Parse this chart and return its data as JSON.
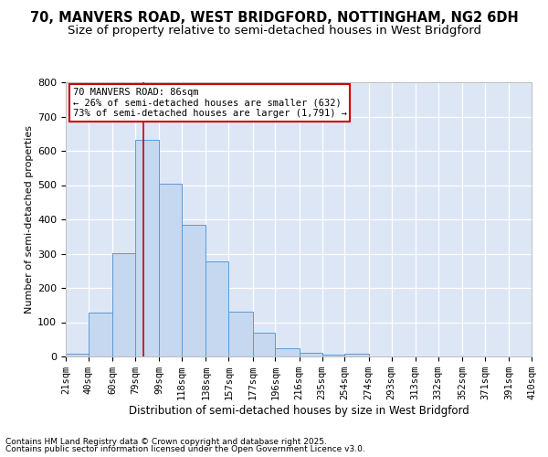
{
  "title1": "70, MANVERS ROAD, WEST BRIDGFORD, NOTTINGHAM, NG2 6DH",
  "title2": "Size of property relative to semi-detached houses in West Bridgford",
  "xlabel": "Distribution of semi-detached houses by size in West Bridgford",
  "ylabel": "Number of semi-detached properties",
  "footnote1": "Contains HM Land Registry data © Crown copyright and database right 2025.",
  "footnote2": "Contains public sector information licensed under the Open Government Licence v3.0.",
  "bar_edges": [
    21,
    40,
    60,
    79,
    99,
    118,
    138,
    157,
    177,
    196,
    216,
    235,
    254,
    274,
    293,
    313,
    332,
    352,
    371,
    391,
    410
  ],
  "bar_heights": [
    8,
    128,
    302,
    632,
    503,
    383,
    278,
    130,
    70,
    25,
    10,
    5,
    7,
    0,
    0,
    0,
    0,
    0,
    0,
    0
  ],
  "bar_color": "#c5d8f0",
  "bar_edge_color": "#5b9bd5",
  "property_size": 86,
  "vline_color": "#cc0000",
  "annotation_text": "70 MANVERS ROAD: 86sqm\n← 26% of semi-detached houses are smaller (632)\n73% of semi-detached houses are larger (1,791) →",
  "annotation_box_color": "#ffffff",
  "annotation_border_color": "#cc0000",
  "ylim": [
    0,
    800
  ],
  "background_color": "#dce6f5",
  "grid_color": "#ffffff",
  "plot_bg": "#dce6f5",
  "fig_bg": "#ffffff",
  "title1_fontsize": 10.5,
  "title2_fontsize": 9.5,
  "xlabel_fontsize": 8.5,
  "ylabel_fontsize": 8,
  "tick_fontsize": 7.5,
  "footnote_fontsize": 6.5,
  "yticks": [
    0,
    100,
    200,
    300,
    400,
    500,
    600,
    700,
    800
  ]
}
